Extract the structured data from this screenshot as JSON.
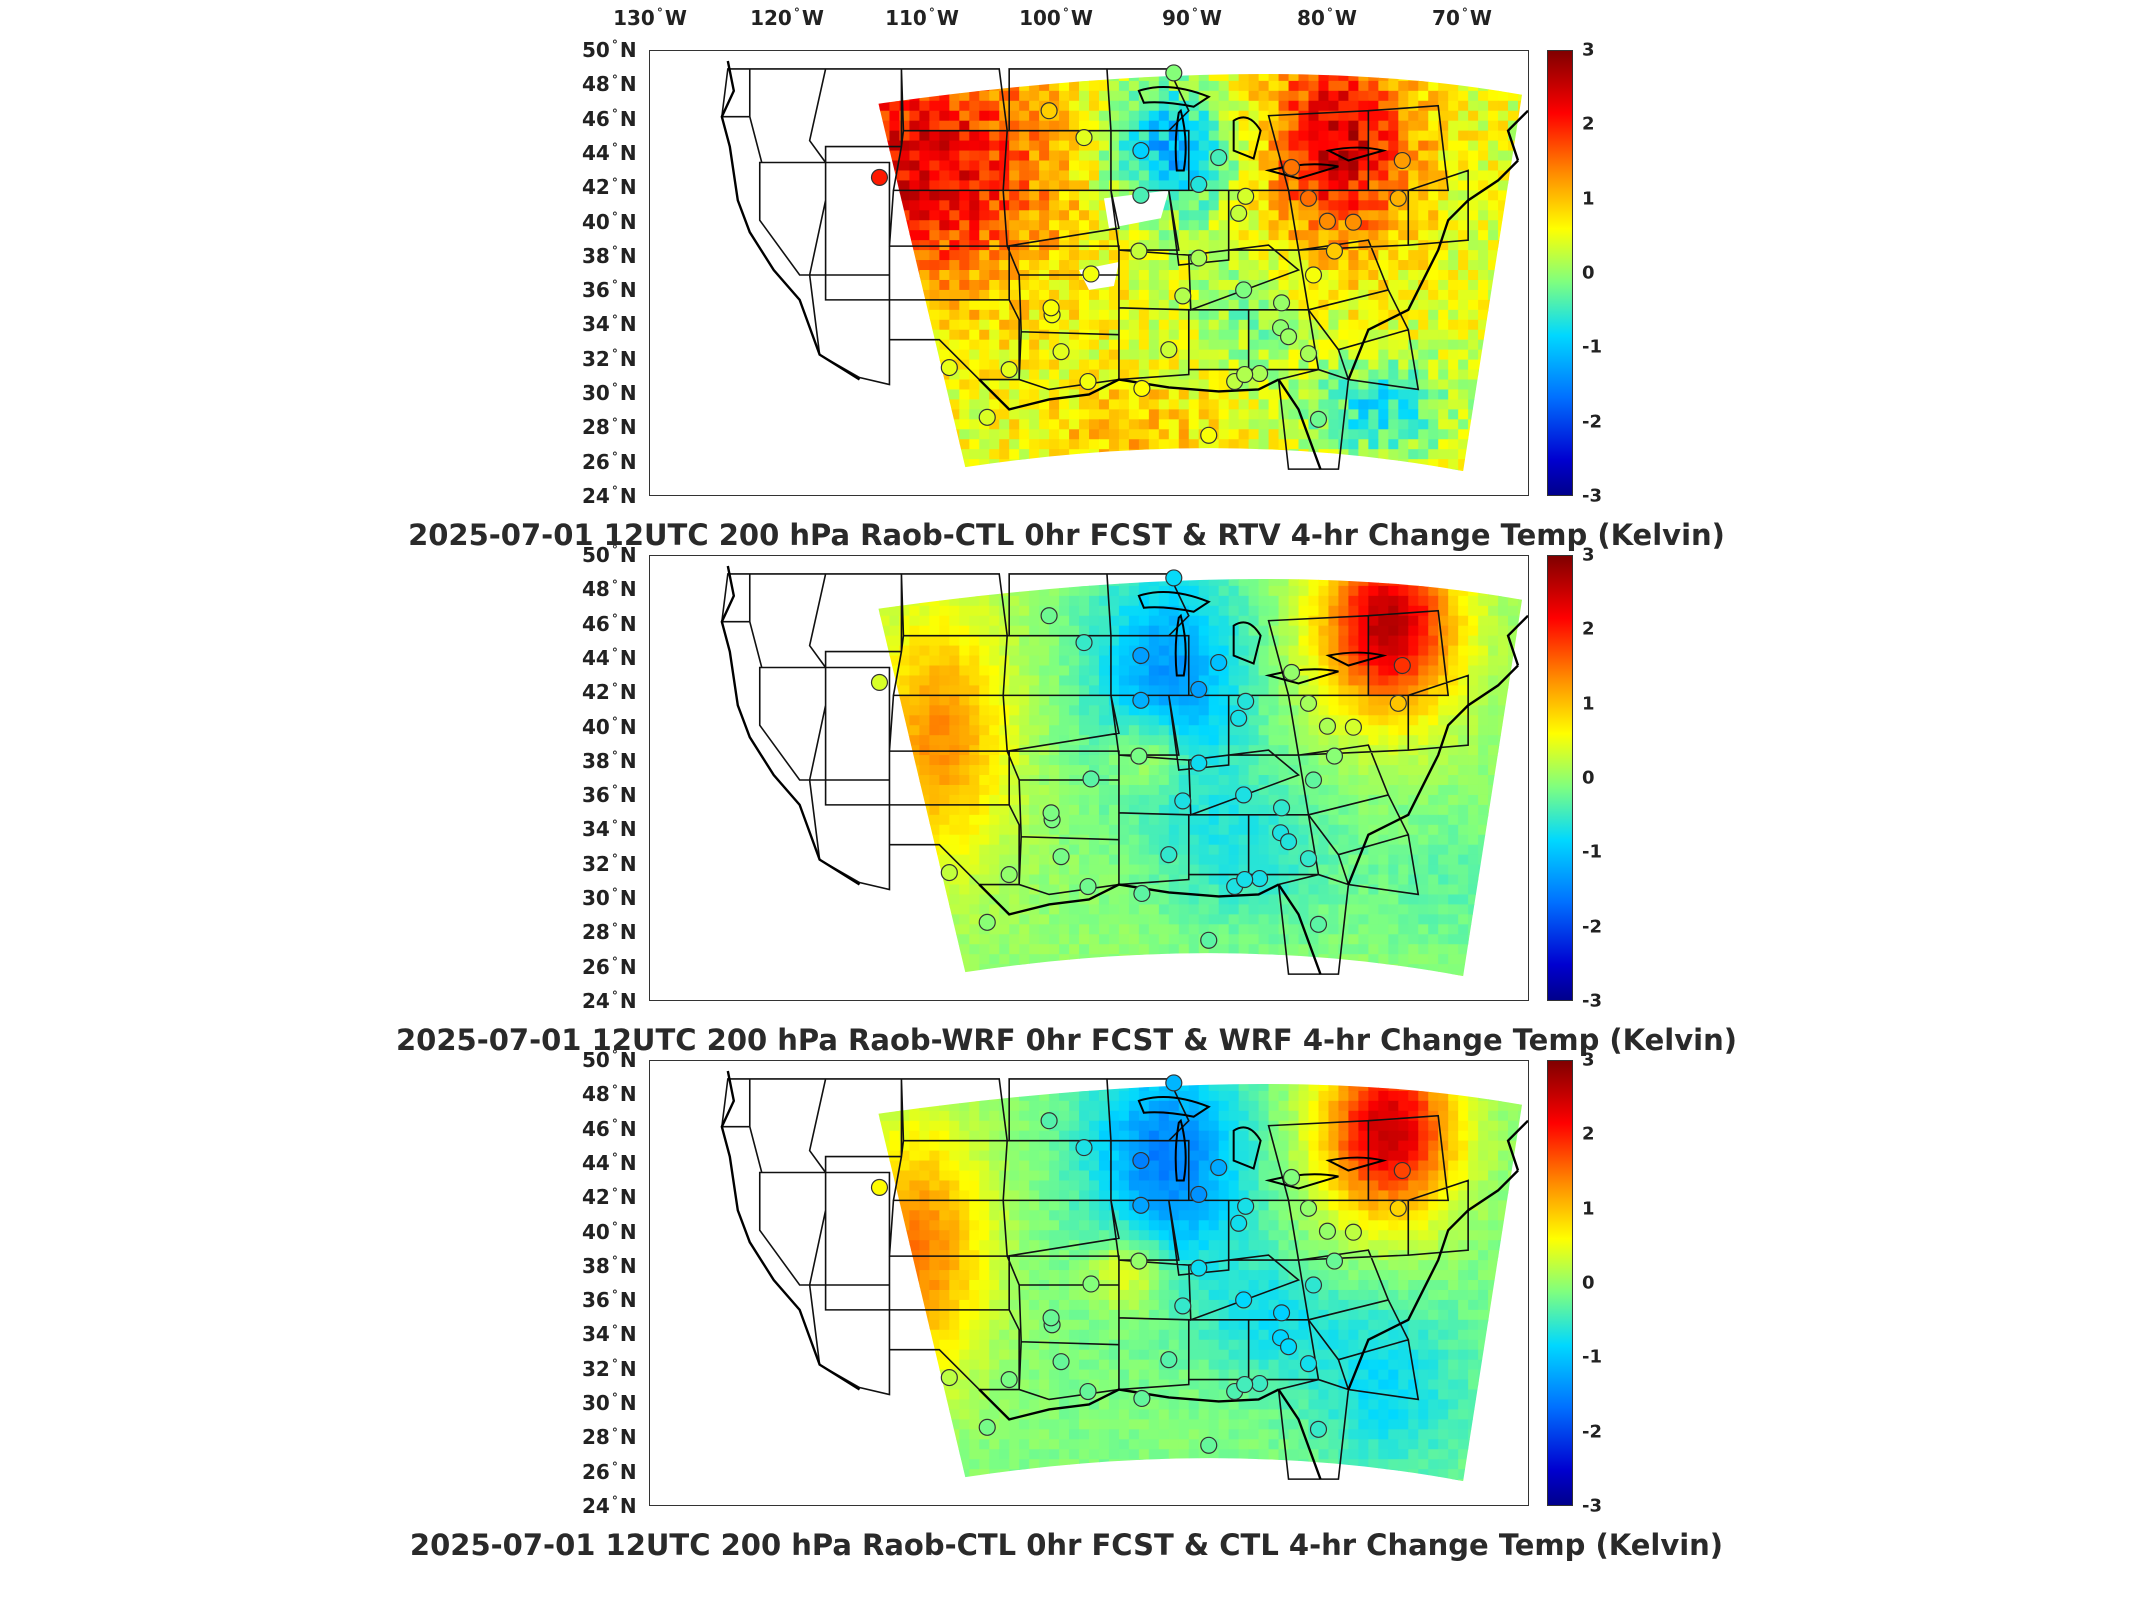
{
  "lon_labels": [
    {
      "value": "130",
      "hemi": "W"
    },
    {
      "value": "120",
      "hemi": "W"
    },
    {
      "value": "110",
      "hemi": "W"
    },
    {
      "value": "100",
      "hemi": "W"
    },
    {
      "value": "90",
      "hemi": "W"
    },
    {
      "value": "80",
      "hemi": "W"
    },
    {
      "value": "70",
      "hemi": "W"
    }
  ],
  "lat_labels": [
    {
      "value": "50",
      "hemi": "N"
    },
    {
      "value": "48",
      "hemi": "N"
    },
    {
      "value": "46",
      "hemi": "N"
    },
    {
      "value": "44",
      "hemi": "N"
    },
    {
      "value": "42",
      "hemi": "N"
    },
    {
      "value": "40",
      "hemi": "N"
    },
    {
      "value": "38",
      "hemi": "N"
    },
    {
      "value": "36",
      "hemi": "N"
    },
    {
      "value": "34",
      "hemi": "N"
    },
    {
      "value": "32",
      "hemi": "N"
    },
    {
      "value": "30",
      "hemi": "N"
    },
    {
      "value": "28",
      "hemi": "N"
    },
    {
      "value": "26",
      "hemi": "N"
    },
    {
      "value": "24",
      "hemi": "N"
    }
  ],
  "colorbar": {
    "ticks": [
      "3",
      "2",
      "1",
      "0",
      "-1",
      "-2",
      "-3"
    ],
    "range": [
      -3,
      3
    ],
    "colors": [
      "#800000",
      "#ff0000",
      "#ff9000",
      "#ffff00",
      "#7fff7f",
      "#00d8ff",
      "#0070ff",
      "#0000d0",
      "#00008b"
    ]
  },
  "panels": [
    {
      "title": "2025-07-01 12UTC 200 hPa Raob-CTL 0hr FCST & RTV 4-hr Change Temp (Kelvin)"
    },
    {
      "title": "2025-07-01 12UTC 200 hPa Raob-WRF 0hr FCST & WRF 4-hr Change Temp (Kelvin)"
    },
    {
      "title": "2025-07-01 12UTC 200 hPa Raob-CTL 0hr FCST & CTL 4-hr Change Temp (Kelvin)"
    }
  ]
}
